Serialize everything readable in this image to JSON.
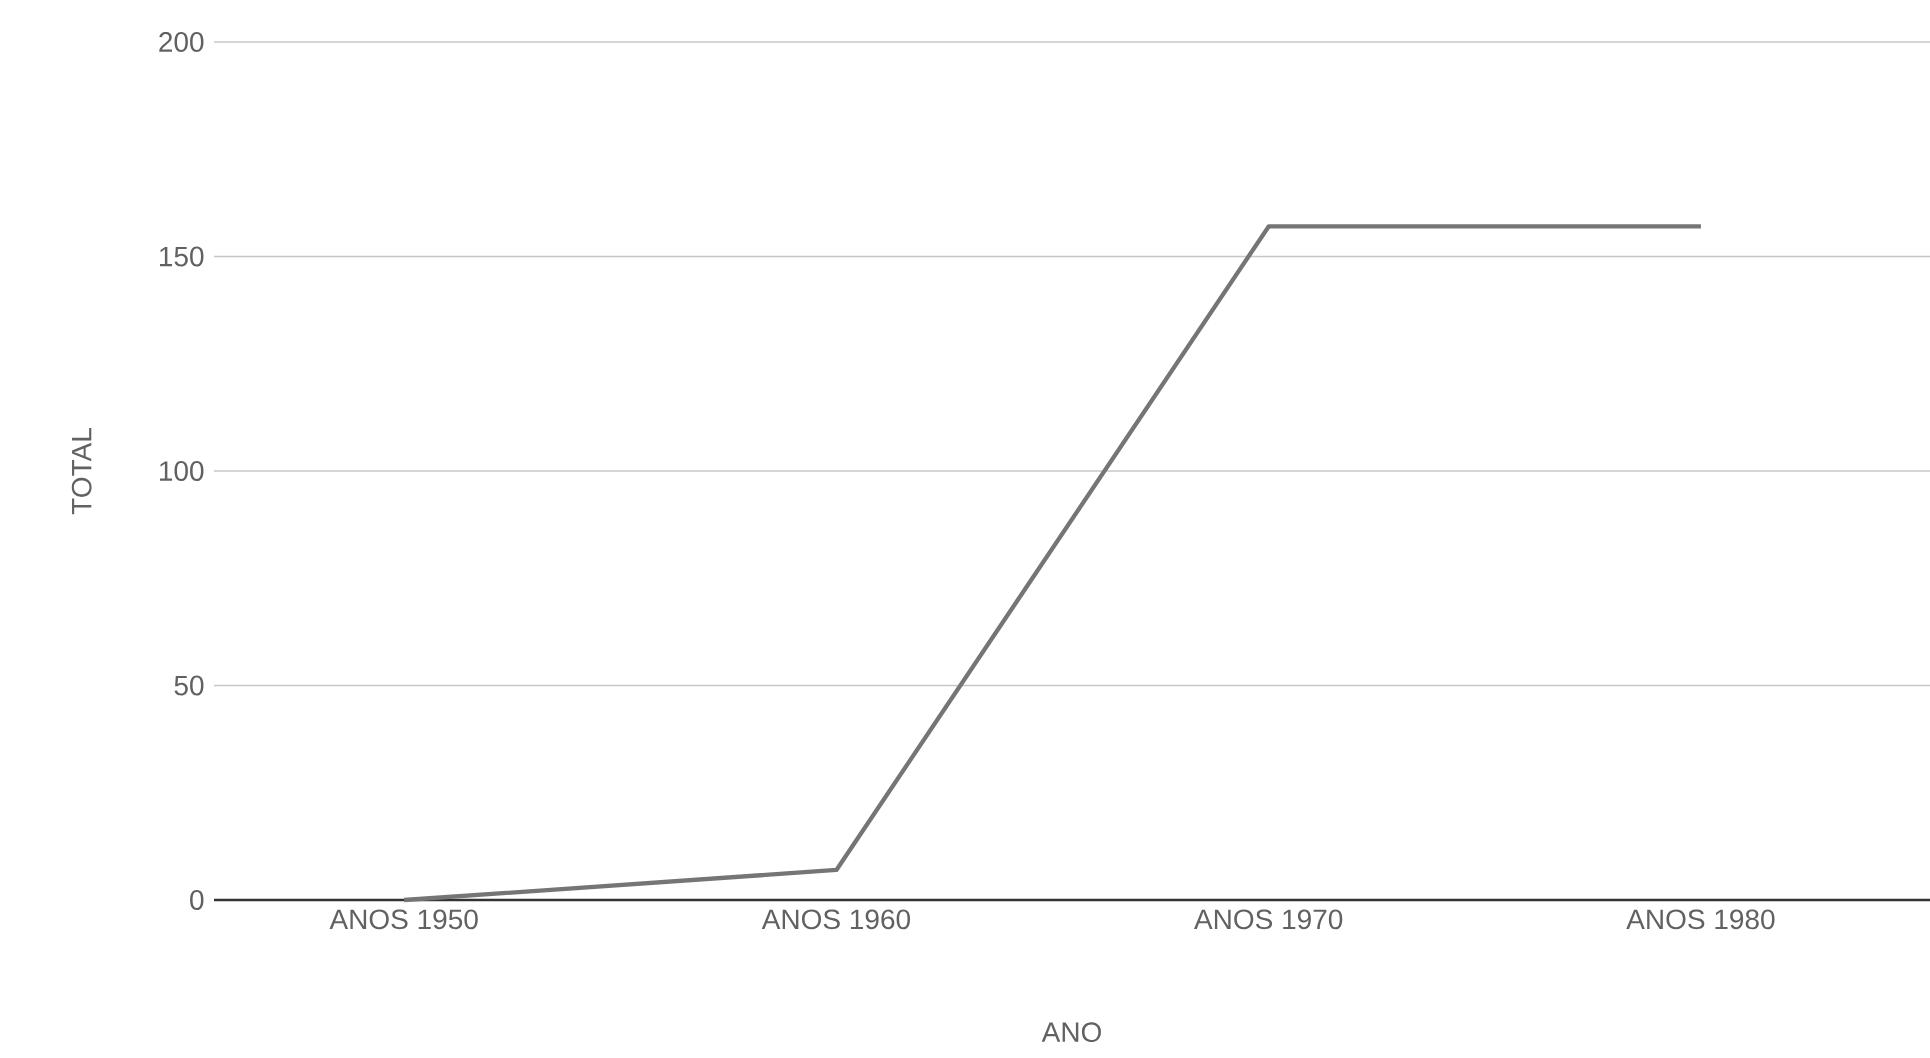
{
  "chart_data": {
    "type": "line",
    "xlabel": "ANO",
    "ylabel": "TOTAL",
    "categories": [
      "ANOS 1950",
      "ANOS 1960",
      "ANOS 1970",
      "ANOS 1980"
    ],
    "series": [
      {
        "color": "#757575",
        "values": [
          0,
          7,
          157,
          157
        ]
      }
    ],
    "ylim": [
      0,
      200
    ],
    "yticks": [
      0,
      50,
      100,
      150,
      200
    ],
    "grid": "y"
  }
}
